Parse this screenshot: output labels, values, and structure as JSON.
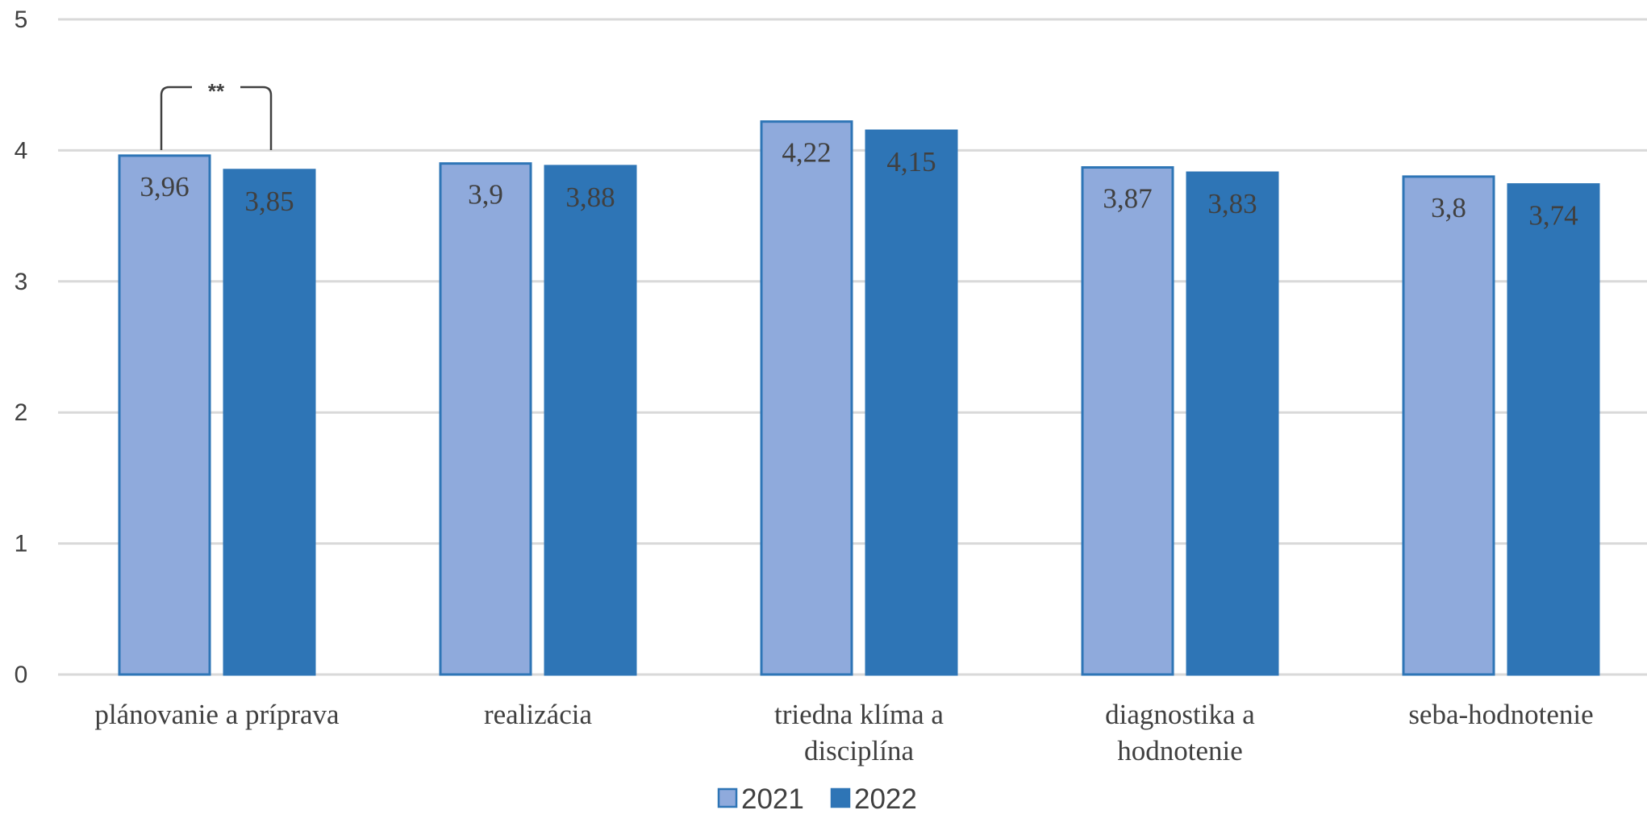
{
  "chart_data": {
    "type": "bar",
    "categories": [
      [
        "plánovanie a príprava"
      ],
      [
        "realizácia"
      ],
      [
        "triedna klíma a",
        "disciplína"
      ],
      [
        "diagnostika a",
        "hodnotenie"
      ],
      [
        "seba-hodnotenie"
      ]
    ],
    "series": [
      {
        "name": "2021",
        "values": [
          3.96,
          3.9,
          4.22,
          3.87,
          3.8
        ],
        "labels": [
          "3,96",
          "3,9",
          "4,22",
          "3,87",
          "3,8"
        ],
        "color": "#8faadc",
        "stroke": "#2e75b6"
      },
      {
        "name": "2022",
        "values": [
          3.85,
          3.88,
          4.15,
          3.83,
          3.74
        ],
        "labels": [
          "3,85",
          "3,88",
          "4,15",
          "3,83",
          "3,74"
        ],
        "color": "#2e75b6",
        "stroke": "#2e75b6"
      }
    ],
    "ylim": [
      0,
      5
    ],
    "yticks": [
      "0",
      "1",
      "2",
      "3",
      "4",
      "5"
    ],
    "grid": true,
    "legend_position": "bottom",
    "annotations": [
      {
        "text": "**",
        "category_index": 0
      }
    ],
    "gridline_color": "#d9d9d9"
  }
}
